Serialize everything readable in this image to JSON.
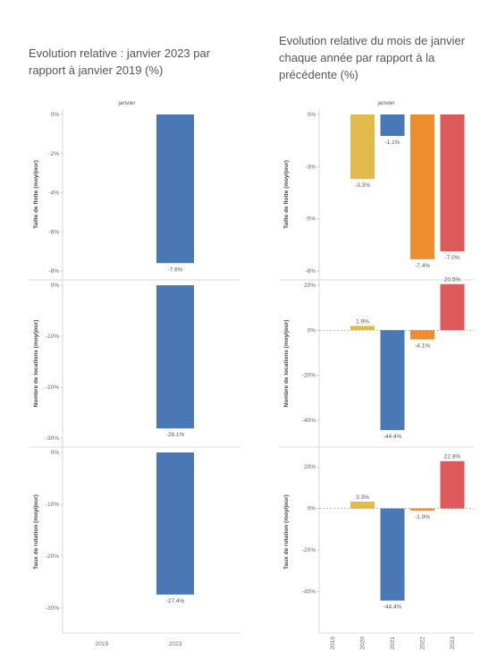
{
  "left_title": "Evolution relative : janvier 2023 par rapport à janvier 2019 (%)",
  "right_title": "Evolution relative du mois de janvier chaque année par rapport à la précédente (%)",
  "chart_data": [
    {
      "type": "bar",
      "title": "Evolution relative : janvier 2023 par rapport à janvier 2019 (%)",
      "column_header": "janvier",
      "categories": [
        "2019",
        "2023"
      ],
      "colors": [
        "#e0ba4a",
        "#4a78b4",
        "#ef8c2e",
        "#de5a5a"
      ],
      "panels": [
        {
          "ylabel": "Taille de flotte (moy/jour)",
          "ylim": [
            -8,
            0
          ],
          "ticks": [
            "0%",
            "-2%",
            "-4%",
            "-6%",
            "-8%"
          ],
          "values": [
            null,
            -7.6
          ],
          "labels": [
            "",
            "-7.6%"
          ]
        },
        {
          "ylabel": "Nombre de locations (moy/jour)",
          "ylim": [
            -30,
            0
          ],
          "ticks": [
            "0%",
            "-10%",
            "-20%",
            "-30%"
          ],
          "values": [
            null,
            -28.1
          ],
          "labels": [
            "",
            "-28.1%"
          ]
        },
        {
          "ylabel": "Taux de rotation (moy/jour)",
          "ylim": [
            -30,
            0
          ],
          "ticks": [
            "0%",
            "-10%",
            "-20%",
            "-30%"
          ],
          "values": [
            null,
            -27.4
          ],
          "labels": [
            "",
            "-27.4%"
          ]
        }
      ]
    },
    {
      "type": "bar",
      "title": "Evolution relative du mois de janvier chaque année par rapport à la précédente (%)",
      "column_header": "janvier",
      "categories": [
        "2019",
        "2020",
        "2021",
        "2022",
        "2023"
      ],
      "colors": [
        "#e0ba4a",
        "#e0ba4a",
        "#4a78b4",
        "#ef8c2e",
        "#de5a5a"
      ],
      "panels": [
        {
          "ylabel": "Taille de flotte (moy/jour)",
          "ylim": [
            -8,
            0
          ],
          "ticks": [
            "0%",
            "-3%",
            "-5%",
            "-8%"
          ],
          "values": [
            null,
            -3.3,
            -1.1,
            -7.4,
            -7.0
          ],
          "labels": [
            "",
            "-3.3%",
            "-1.1%",
            "-7.4%",
            "-7.0%"
          ]
        },
        {
          "ylabel": "Nombre de locations (moy/jour)",
          "ylim": [
            -48,
            20
          ],
          "ticks": [
            "20%",
            "0%",
            "-20%",
            "-40%"
          ],
          "values": [
            null,
            1.9,
            -44.4,
            -4.1,
            20.5
          ],
          "labels": [
            "",
            "1.9%",
            "-44.4%",
            "-4.1%",
            "20.5%"
          ]
        },
        {
          "ylabel": "Taux de rotation (moy/jour)",
          "ylim": [
            -48,
            27
          ],
          "ticks": [
            "20%",
            "0%",
            "-20%",
            "-40%"
          ],
          "values": [
            null,
            3.3,
            -44.4,
            -1.0,
            22.8
          ],
          "labels": [
            "",
            "3.3%",
            "-44.4%",
            "-1.0%",
            "22.8%"
          ]
        }
      ]
    }
  ]
}
